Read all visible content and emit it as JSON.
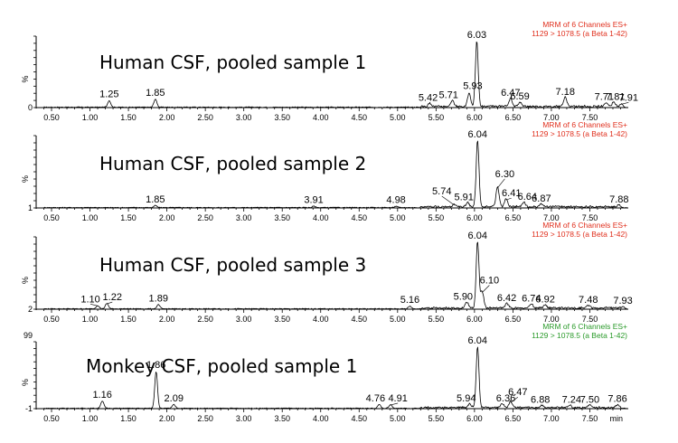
{
  "chart_data": [
    {
      "type": "line",
      "title": "Human CSF, pooled sample 1",
      "method_line1": "MRM of 6 Channels ES+",
      "method_line2": "1129 > 1078.5 (a Beta 1-42)",
      "method_color": "#e0301e",
      "ylabel": "%",
      "y_min_label": "0",
      "y_max_label": "",
      "x_ticks": [
        "0.50",
        "1.00",
        "1.50",
        "2.00",
        "2.50",
        "3.00",
        "3.50",
        "4.00",
        "4.50",
        "5.00",
        "5.50",
        "6.00",
        "6.50",
        "7.00",
        "7.50"
      ],
      "x_unit": "",
      "xlim": [
        0.3,
        8.0
      ],
      "peaks": [
        {
          "rt": 1.25,
          "label": "1.25",
          "height": 10
        },
        {
          "rt": 1.85,
          "label": "1.85",
          "height": 12
        },
        {
          "rt": 5.42,
          "label": "5.42",
          "height": 5
        },
        {
          "rt": 5.71,
          "label": "5.71",
          "height": 9
        },
        {
          "rt": 5.93,
          "label": "5.93",
          "height": 20
        },
        {
          "rt": 6.03,
          "label": "6.03",
          "height": 100
        },
        {
          "rt": 6.47,
          "label": "6.47",
          "height": 12
        },
        {
          "rt": 6.59,
          "label": "6.59",
          "height": 7
        },
        {
          "rt": 7.18,
          "label": "7.18",
          "height": 14
        },
        {
          "rt": 7.71,
          "label": "7.71",
          "height": 6
        },
        {
          "rt": 7.81,
          "label": "7.81",
          "height": 6
        },
        {
          "rt": 7.91,
          "label": "7.91",
          "height": 5
        }
      ]
    },
    {
      "type": "line",
      "title": "Human CSF, pooled sample 2",
      "method_line1": "MRM of 6 Channels ES+",
      "method_line2": "1129 > 1078.5 (a Beta 1-42)",
      "method_color": "#e0301e",
      "ylabel": "%",
      "y_min_label": "1",
      "y_max_label": "",
      "x_ticks": [
        "0.50",
        "1.00",
        "1.50",
        "2.00",
        "2.50",
        "3.00",
        "3.50",
        "4.00",
        "4.50",
        "5.00",
        "5.50",
        "6.00",
        "6.50",
        "7.00",
        "7.50"
      ],
      "x_unit": "",
      "xlim": [
        0.3,
        8.0
      ],
      "peaks": [
        {
          "rt": 1.85,
          "label": "1.85",
          "height": 3
        },
        {
          "rt": 3.91,
          "label": "3.91",
          "height": 2
        },
        {
          "rt": 4.98,
          "label": "4.98",
          "height": 2
        },
        {
          "rt": 5.74,
          "label": "5.74",
          "height": 4
        },
        {
          "rt": 5.91,
          "label": "5.91",
          "height": 6
        },
        {
          "rt": 6.04,
          "label": "6.04",
          "height": 100
        },
        {
          "rt": 6.3,
          "label": "6.30",
          "height": 30
        },
        {
          "rt": 6.41,
          "label": "6.41",
          "height": 12
        },
        {
          "rt": 6.64,
          "label": "6.64",
          "height": 7
        },
        {
          "rt": 6.87,
          "label": "6.87",
          "height": 4
        },
        {
          "rt": 7.88,
          "label": "7.88",
          "height": 3
        }
      ]
    },
    {
      "type": "line",
      "title": "Human CSF, pooled sample 3",
      "method_line1": "MRM of 6 Channels ES+",
      "method_line2": "1129 > 1078.5 (a Beta 1-42)",
      "method_color": "#e0301e",
      "ylabel": "%",
      "y_min_label": "2",
      "y_max_label": "",
      "x_ticks": [
        "0.50",
        "1.00",
        "1.50",
        "2.00",
        "2.50",
        "3.00",
        "3.50",
        "4.00",
        "4.50",
        "5.00",
        "5.50",
        "6.00",
        "6.50",
        "7.00",
        "7.50"
      ],
      "x_unit": "",
      "xlim": [
        0.3,
        8.0
      ],
      "peaks": [
        {
          "rt": 1.1,
          "label": "1.10",
          "height": 5
        },
        {
          "rt": 1.22,
          "label": "1.22",
          "height": 8
        },
        {
          "rt": 1.89,
          "label": "1.89",
          "height": 6
        },
        {
          "rt": 5.16,
          "label": "5.16",
          "height": 4
        },
        {
          "rt": 5.9,
          "label": "5.90",
          "height": 9
        },
        {
          "rt": 6.04,
          "label": "6.04",
          "height": 100
        },
        {
          "rt": 6.1,
          "label": "6.10",
          "height": 25
        },
        {
          "rt": 6.42,
          "label": "6.42",
          "height": 7
        },
        {
          "rt": 6.74,
          "label": "6.74",
          "height": 6
        },
        {
          "rt": 6.92,
          "label": "6.92",
          "height": 5
        },
        {
          "rt": 7.48,
          "label": "7.48",
          "height": 4
        },
        {
          "rt": 7.93,
          "label": "7.93",
          "height": 3
        }
      ]
    },
    {
      "type": "line",
      "title": "Monkey CSF, pooled sample 1",
      "method_line1": "MRM of 6 Channels ES+",
      "method_line2": "1129 > 1078.5 (a Beta 1-42)",
      "method_color": "#2a9a2a",
      "ylabel": "%",
      "y_min_label": "-1",
      "y_max_label": "99",
      "x_ticks": [
        "0.50",
        "1.00",
        "1.50",
        "2.00",
        "2.50",
        "3.00",
        "3.50",
        "4.00",
        "4.50",
        "5.00",
        "5.50",
        "6.00",
        "6.50",
        "7.00",
        "7.50"
      ],
      "x_unit": "min",
      "xlim": [
        0.3,
        8.0
      ],
      "peaks": [
        {
          "rt": 1.16,
          "label": "1.16",
          "height": 12
        },
        {
          "rt": 1.86,
          "label": "1.86",
          "height": 60
        },
        {
          "rt": 2.09,
          "label": "2.09",
          "height": 6
        },
        {
          "rt": 4.76,
          "label": "4.76",
          "height": 6
        },
        {
          "rt": 4.91,
          "label": "4.91",
          "height": 6
        },
        {
          "rt": 5.94,
          "label": "5.94",
          "height": 6
        },
        {
          "rt": 6.04,
          "label": "6.04",
          "height": 100
        },
        {
          "rt": 6.36,
          "label": "6.36",
          "height": 6
        },
        {
          "rt": 6.47,
          "label": "6.47",
          "height": 10
        },
        {
          "rt": 6.88,
          "label": "6.88",
          "height": 4
        },
        {
          "rt": 7.24,
          "label": "7.24",
          "height": 4
        },
        {
          "rt": 7.5,
          "label": "7.50",
          "height": 4
        },
        {
          "rt": 7.86,
          "label": "7.86",
          "height": 5
        }
      ]
    }
  ]
}
